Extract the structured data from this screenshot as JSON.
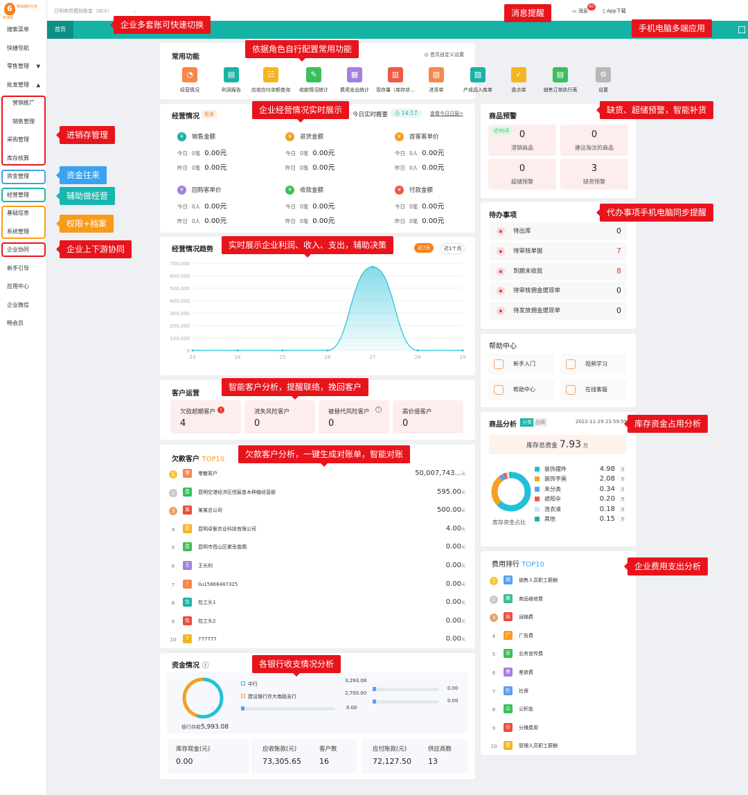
{
  "logo": {
    "mark": "6",
    "name": "畅销通好生意",
    "sub": "标准版"
  },
  "topbar": {
    "account": "日明商贸模拟账套（XCX）",
    "message_label": "消息",
    "message_badge": "60",
    "app_download": "App下载"
  },
  "tabs": {
    "home": "首页"
  },
  "sidebar": {
    "items": [
      {
        "label": "搜索菜单"
      },
      {
        "label": "快捷导航"
      },
      {
        "label": "零售管理",
        "arrow": "▼"
      },
      {
        "label": "批发管理",
        "arrow": "▲"
      },
      {
        "label": "营销推广"
      },
      {
        "label": "销售管理"
      },
      {
        "label": "采购管理"
      },
      {
        "label": "库存核算"
      },
      {
        "label": "资金管理"
      },
      {
        "label": "经营管理"
      },
      {
        "label": "基础信息"
      },
      {
        "label": "系统管理"
      },
      {
        "label": "企业协同"
      },
      {
        "label": "新手引导"
      },
      {
        "label": "应用中心"
      },
      {
        "label": "企业微信"
      },
      {
        "label": "畅会员"
      }
    ]
  },
  "callouts": {
    "account_switch": "企业多套账可快速切换",
    "message": "消息提醒",
    "multi_device": "手机电脑多端应用",
    "common_func": "依据角色自行配置常用功能",
    "realtime": "企业经营情况实时展示",
    "stock_warn": "缺货、超储预警，智能补货",
    "inv": "进销存管理",
    "fund": "资金往来",
    "assist": "辅助做经营",
    "perm": "权限+档案",
    "collab": "企业上下游协同",
    "todo": "代办事项手机电脑同步提醒",
    "trend": "实时展示企业利润、收入、支出，辅助决策",
    "customer": "智能客户分析，提醒联络，挽回客户",
    "inventory_fund": "库存资金占用分析",
    "debt": "欠款客户分析，一键生成对账单，智能对账",
    "expense": "企业费用支出分析",
    "bank": "各银行收支情况分析"
  },
  "common": {
    "title": "常用功能",
    "settings": "首页自定义设置",
    "items": [
      {
        "label": "经营情况",
        "color": "#f7874b",
        "icon": "◔"
      },
      {
        "label": "利润报告",
        "color": "#19b3a5",
        "icon": "▤"
      },
      {
        "label": "应收应付余额查询",
        "color": "#f5b520",
        "icon": "☷"
      },
      {
        "label": "收款情况统计",
        "color": "#3bbf5a",
        "icon": "✎"
      },
      {
        "label": "费用支出统计",
        "color": "#a480e0",
        "icon": "▦"
      },
      {
        "label": "现存量（库存状...",
        "color": "#ee5a45",
        "icon": "▥"
      },
      {
        "label": "进货单",
        "color": "#f7874b",
        "icon": "▧"
      },
      {
        "label": "产成品入库单",
        "color": "#19b3a5",
        "icon": "▨"
      },
      {
        "label": "盘点单",
        "color": "#f5b520",
        "icon": "✓"
      },
      {
        "label": "销售订单执行表",
        "color": "#3bbf5a",
        "icon": "▤"
      },
      {
        "label": "设置",
        "color": "#b8b8b8",
        "icon": "⚙"
      }
    ]
  },
  "business": {
    "title": "经营情况",
    "tag": "批发",
    "overview": "今日实时概要",
    "time": "14:17",
    "daily_link": "查看今日日报>",
    "stats": [
      {
        "label": "销售金额",
        "color": "#19b3a5",
        "today_label": "今日",
        "today_count": "0笔",
        "today_val": "0.00元",
        "yest_label": "昨日",
        "yest_count": "0笔",
        "yest_val": "0.00元"
      },
      {
        "label": "退货金额",
        "color": "#f5a020",
        "today_label": "今日",
        "today_count": "0笔",
        "today_val": "0.00元",
        "yest_label": "昨日",
        "yest_count": "0笔",
        "yest_val": "0.00元"
      },
      {
        "label": "首客客单价",
        "color": "#f5a020",
        "today_label": "今日",
        "today_count": "0人",
        "today_val": "0.00元",
        "yest_label": "昨日",
        "yest_count": "0人",
        "yest_val": "0.00元"
      },
      {
        "label": "回购客单价",
        "color": "#a480e0",
        "today_label": "今日",
        "today_count": "0人",
        "today_val": "0.00元",
        "yest_label": "昨日",
        "yest_count": "0人",
        "yest_val": "0.00元"
      },
      {
        "label": "收款金额",
        "color": "#3bbf5a",
        "today_label": "今日",
        "today_count": "0笔",
        "today_val": "0.00元",
        "yest_label": "昨日",
        "yest_count": "0笔",
        "yest_val": "0.00元"
      },
      {
        "label": "付款金额",
        "color": "#ee5a45",
        "today_label": "今日",
        "today_count": "0笔",
        "today_val": "0.00元",
        "yest_label": "昨日",
        "yest_count": "0笔",
        "yest_val": "0.00元"
      }
    ]
  },
  "trend": {
    "title": "经营情况趋势",
    "btn_7": "近7天",
    "btn_month": "近1个月"
  },
  "chart_data": {
    "type": "area",
    "title": "经营情况趋势",
    "x": [
      "23",
      "24",
      "25",
      "26",
      "27",
      "28",
      "29"
    ],
    "y_ticks": [
      "0",
      "100,000",
      "200,000",
      "300,000",
      "400,000",
      "500,000",
      "600,000",
      "700,000"
    ],
    "ylim": [
      0,
      700000
    ],
    "series": [
      {
        "values": [
          0,
          0,
          0,
          0,
          670000,
          0,
          0
        ]
      }
    ],
    "color": "#22c0d8",
    "grid": true
  },
  "customers": {
    "title": "客户运营",
    "items": [
      {
        "label": "欠款超期客户",
        "value": "4",
        "badge": "!"
      },
      {
        "label": "流失风险客户",
        "value": "0"
      },
      {
        "label": "被替代风险客户",
        "value": "0",
        "help": "?"
      },
      {
        "label": "高价值客户",
        "value": "0"
      }
    ]
  },
  "debt": {
    "title": "欠款客户",
    "top": "TOP10",
    "rows": [
      {
        "rank": "1",
        "avatar": "零",
        "color": "#f7874b",
        "name": "零散客户",
        "value": "50,007,743...",
        "unit": "元"
      },
      {
        "rank": "2",
        "avatar": "昆",
        "color": "#3bbf5a",
        "name": "昆明空港经济区悦宸苗木种植经营部",
        "value": "595.00",
        "unit": "元"
      },
      {
        "rank": "3",
        "avatar": "某",
        "color": "#ee4a3a",
        "name": "某某总公司",
        "value": "500.00",
        "unit": "元"
      },
      {
        "rank": "4",
        "avatar": "昆",
        "color": "#f5b520",
        "name": "昆明卓衡农业科技有限公司",
        "value": "4.00",
        "unit": "元"
      },
      {
        "rank": "5",
        "avatar": "昆",
        "color": "#3bbf5a",
        "name": "昆明市西山区紫岳苗圃",
        "value": "0.00",
        "unit": "元"
      },
      {
        "rank": "6",
        "avatar": "王",
        "color": "#a480e0",
        "name": "王长利",
        "value": "0.00",
        "unit": "元"
      },
      {
        "rank": "7",
        "avatar": "l",
        "color": "#f7874b",
        "name": "liu15868487325",
        "value": "0.00",
        "unit": "元"
      },
      {
        "rank": "8",
        "avatar": "包",
        "color": "#19b3a5",
        "name": "包工头1",
        "value": "0.00",
        "unit": "元"
      },
      {
        "rank": "9",
        "avatar": "包",
        "color": "#ee4a3a",
        "name": "包工头2",
        "value": "0.00",
        "unit": "元"
      },
      {
        "rank": "10",
        "avatar": "7",
        "color": "#f5b520",
        "name": "777777",
        "value": "0.00",
        "unit": "元"
      }
    ]
  },
  "funds": {
    "title": "资金情况",
    "bank_total_label": "银行存款",
    "bank_total": "5,993.08",
    "banks": [
      {
        "name": "中行",
        "value": "3,293.08",
        "bar_value": "0.00",
        "fraction": 0.55
      },
      {
        "name": "建设银行农大南路支行",
        "value": "2,700.00",
        "bar_value": "0.00",
        "fraction": 0.45
      }
    ],
    "left_bar_value": "0.00",
    "cells": [
      {
        "k": "库存现金(元)",
        "v": "0.00"
      },
      {
        "k": "应收账款(元)",
        "v": "73,305.65"
      },
      {
        "k": "客户数",
        "v": "16"
      },
      {
        "k": "应付账款(元)",
        "v": "72,127.50"
      },
      {
        "k": "供应商数",
        "v": "13"
      }
    ]
  },
  "warning": {
    "title": "商品预警",
    "badge": "近90天",
    "items": [
      {
        "value": "0",
        "label": "滞销商品"
      },
      {
        "value": "0",
        "label": "建议淘汰的商品"
      },
      {
        "value": "0",
        "label": "超储预警"
      },
      {
        "value": "3",
        "label": "缺货预警"
      }
    ]
  },
  "todos": {
    "title": "待办事项",
    "items": [
      {
        "label": "待出库",
        "value": "0",
        "color": "#222"
      },
      {
        "label": "待审核单据",
        "value": "7",
        "color": "#e23a2e"
      },
      {
        "label": "到期未收款",
        "value": "8",
        "color": "#e23a2e"
      },
      {
        "label": "待审核佣金提现单",
        "value": "0",
        "color": "#222"
      },
      {
        "label": "待发放佣金提现单",
        "value": "0",
        "color": "#222"
      }
    ]
  },
  "help": {
    "title": "帮助中心",
    "items": [
      {
        "label": "新手入门"
      },
      {
        "label": "视频学习"
      },
      {
        "label": "帮助中心"
      },
      {
        "label": "在线客服"
      }
    ]
  },
  "product": {
    "title": "商品分析",
    "tag1": "分类",
    "tag2": "品牌",
    "date": "2022-11-29 23:59:59",
    "total_label": "库存总资金",
    "total": "7.93",
    "total_unit": "万",
    "donut_label": "库存资金占比",
    "cats": [
      {
        "name": "装饰摆件",
        "value": "4.98",
        "unit": "万",
        "color": "#22c0d8"
      },
      {
        "name": "装饰字画",
        "value": "2.08",
        "unit": "万",
        "color": "#f5a020"
      },
      {
        "name": "未分类",
        "value": "0.34",
        "unit": "万",
        "color": "#5aa0f0"
      },
      {
        "name": "遮阳伞",
        "value": "0.20",
        "unit": "万",
        "color": "#ee5a45"
      },
      {
        "name": "洗衣液",
        "value": "0.18",
        "unit": "万",
        "color": "#cfe3f5"
      },
      {
        "name": "其他",
        "value": "0.15",
        "unit": "万",
        "color": "#19b3a5"
      }
    ]
  },
  "expense": {
    "title": "费用排行",
    "top": "TOP10",
    "rows": [
      {
        "rank": "1",
        "avatar": "销",
        "color": "#5aa0f0",
        "name": "销售人员职工薪酬"
      },
      {
        "rank": "2",
        "avatar": "商",
        "color": "#3bbf8f",
        "name": "商品维修费"
      },
      {
        "rank": "3",
        "avatar": "运",
        "color": "#ee4a3a",
        "name": "运输费"
      },
      {
        "rank": "4",
        "avatar": "广",
        "color": "#f5a020",
        "name": "广告费"
      },
      {
        "rank": "5",
        "avatar": "业",
        "color": "#3bbf5a",
        "name": "业务宣传费"
      },
      {
        "rank": "6",
        "avatar": "差",
        "color": "#a480e0",
        "name": "差旅费"
      },
      {
        "rank": "7",
        "avatar": "社",
        "color": "#5aa0f0",
        "name": "社保"
      },
      {
        "rank": "8",
        "avatar": "公",
        "color": "#3bbf5a",
        "name": "公积金"
      },
      {
        "rank": "9",
        "avatar": "分",
        "color": "#ee4a3a",
        "name": "分摊费用"
      },
      {
        "rank": "10",
        "avatar": "管",
        "color": "#f5b520",
        "name": "管理人员职工薪酬"
      }
    ]
  }
}
